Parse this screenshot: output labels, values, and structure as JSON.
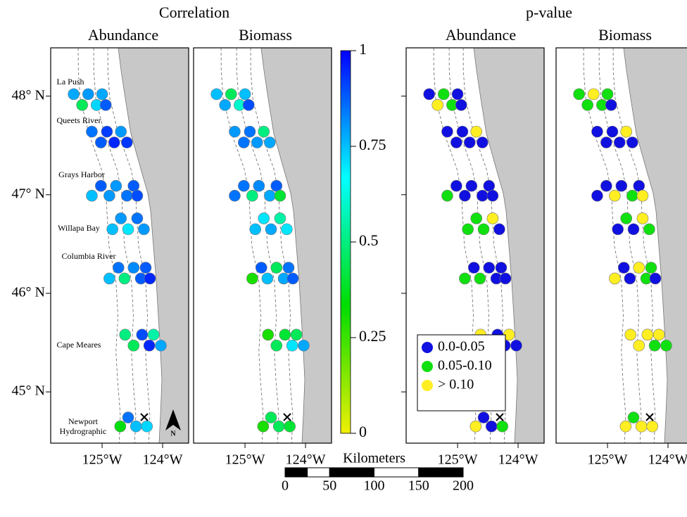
{
  "titles": {
    "correlation": "Correlation",
    "p_value": "p-value"
  },
  "panels": [
    {
      "title": "Abundance",
      "color_by": "colorbar",
      "values": [
        0.78,
        0.8,
        0.78,
        0.45,
        0.72,
        0.88,
        0.85,
        0.92,
        0.8,
        0.88,
        0.95,
        0.93,
        0.88,
        0.8,
        0.88,
        0.75,
        0.8,
        0.85,
        0.9,
        0.8,
        0.85,
        0.75,
        0.7,
        0.8,
        0.85,
        0.82,
        0.88,
        0.75,
        0.5,
        0.88,
        0.95,
        0.5,
        0.9,
        0.55,
        0.45,
        0.95,
        0.78,
        0.85,
        0.35,
        0.75,
        0.72
      ]
    },
    {
      "title": "Biomass",
      "color_by": "colorbar",
      "values": [
        0.75,
        0.45,
        0.75,
        0.78,
        0.6,
        0.9,
        0.8,
        0.85,
        0.5,
        0.85,
        0.8,
        0.78,
        0.85,
        0.82,
        0.88,
        0.85,
        0.5,
        0.78,
        0.4,
        0.7,
        0.55,
        0.75,
        0.78,
        0.7,
        0.88,
        0.45,
        0.85,
        0.3,
        0.75,
        0.78,
        0.88,
        0.3,
        0.4,
        0.45,
        0.45,
        0.7,
        0.78,
        0.45,
        0.3,
        0.45,
        0.4
      ]
    },
    {
      "title": "Abundance",
      "color_by": "legend",
      "values": [
        0.01,
        0.07,
        0.02,
        0.3,
        0.07,
        0.01,
        0.02,
        0.02,
        0.3,
        0.01,
        0.01,
        0.01,
        0.01,
        0.01,
        0.01,
        0.07,
        0.01,
        0.01,
        0.01,
        0.07,
        0.3,
        0.07,
        0.07,
        0.01,
        0.01,
        0.01,
        0.01,
        0.07,
        0.07,
        0.01,
        0.01,
        0.3,
        0.01,
        0.3,
        0.3,
        0.01,
        0.01,
        0.01,
        0.3,
        0.01,
        0.07
      ]
    },
    {
      "title": "Biomass",
      "color_by": "legend",
      "values": [
        0.07,
        0.3,
        0.07,
        0.07,
        0.07,
        0.01,
        0.01,
        0.01,
        0.3,
        0.01,
        0.01,
        0.01,
        0.01,
        0.01,
        0.01,
        0.01,
        0.3,
        0.07,
        0.3,
        0.07,
        0.3,
        0.01,
        0.01,
        0.07,
        0.01,
        0.3,
        0.07,
        0.3,
        0.01,
        0.07,
        0.01,
        0.3,
        0.3,
        0.3,
        0.3,
        0.07,
        0.07,
        0.07,
        0.3,
        0.3,
        0.3
      ]
    }
  ],
  "stations": {
    "lon": [
      -125.47,
      -125.23,
      -125.0,
      -125.33,
      -125.09,
      -124.94,
      -125.17,
      -124.92,
      -124.69,
      -125.02,
      -124.8,
      -124.59,
      -125.02,
      -124.77,
      -124.48,
      -125.17,
      -124.88,
      -124.59,
      -124.42,
      -124.69,
      -124.42,
      -124.83,
      -124.57,
      -124.31,
      -124.73,
      -124.48,
      -124.28,
      -124.88,
      -124.63,
      -124.36,
      -124.21,
      -124.62,
      -124.34,
      -124.15,
      -124.48,
      -124.22,
      -124.03,
      -124.57,
      -124.7,
      -124.44,
      -124.26
    ],
    "lat": [
      48.02,
      48.02,
      48.02,
      47.91,
      47.91,
      47.91,
      47.64,
      47.64,
      47.64,
      47.53,
      47.53,
      47.53,
      47.09,
      47.09,
      47.09,
      46.99,
      46.99,
      46.99,
      46.99,
      46.76,
      46.76,
      46.65,
      46.65,
      46.65,
      46.26,
      46.26,
      46.26,
      46.15,
      46.15,
      46.15,
      46.15,
      45.58,
      45.58,
      45.58,
      45.47,
      45.47,
      45.47,
      44.74,
      44.65,
      44.65,
      44.65
    ]
  },
  "sites": [
    [
      "La Push"
    ],
    [
      "Queets River"
    ],
    [
      "Grays Harbor"
    ],
    [
      "Willapa Bay"
    ],
    [
      "Columbia River"
    ],
    [
      "Cape Meares"
    ],
    [
      "Newport",
      "Hydrographic"
    ]
  ],
  "north_label": "N",
  "lonlim": [
    -125.85,
    -123.57
  ],
  "latlim": [
    48.49,
    44.48
  ],
  "lat_ticks": [
    {
      "value": 48,
      "label": "48° N"
    },
    {
      "value": 47,
      "label": "47° N"
    },
    {
      "value": 46,
      "label": "46° N"
    },
    {
      "value": 45,
      "label": "45° N"
    }
  ],
  "lon_ticks": [
    {
      "value": -125,
      "label": "125°W"
    },
    {
      "value": -124,
      "label": "124°W"
    }
  ],
  "colorbar": {
    "lim": [
      0,
      1
    ],
    "ticks": [
      0,
      0.25,
      0.5,
      0.75,
      1
    ],
    "colors": [
      "#f0f000",
      "#00dd00",
      "#00ffff",
      "#0000ff"
    ]
  },
  "legend": [
    {
      "label": "0.0-0.05",
      "color": "#1010e0",
      "range": [
        0,
        0.05
      ]
    },
    {
      "label": "0.05-0.10",
      "color": "#10e010",
      "range": [
        0.05,
        0.1
      ]
    },
    {
      "label": "> 0.10",
      "color": "#ffee22",
      "range": [
        0.1,
        1
      ]
    }
  ],
  "scale_bar": {
    "title": "Kilometers",
    "ticks": [
      0,
      50,
      100,
      150,
      200
    ]
  }
}
